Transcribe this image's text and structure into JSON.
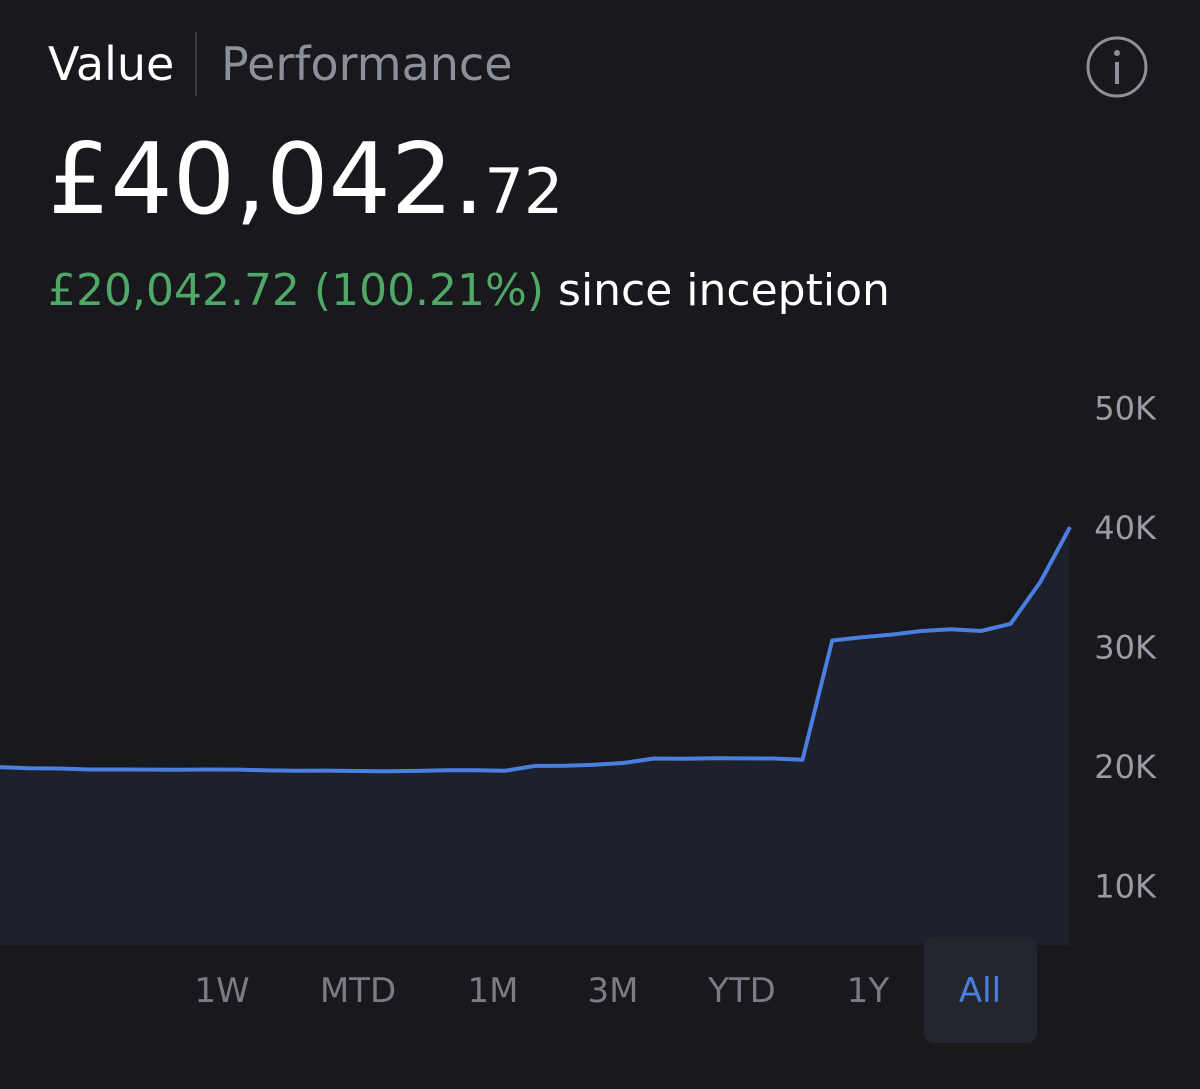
{
  "tabs": [
    "Value",
    "Performance"
  ],
  "value": {
    "whole": "£40,042.",
    "decimals": "72"
  },
  "change": {
    "amount": "£20,042.72 (100.21%)",
    "label": "since inception"
  },
  "ranges": {
    "options": [
      "1W",
      "MTD",
      "1M",
      "3M",
      "YTD",
      "1Y",
      "All"
    ],
    "selected_index": 6
  },
  "chart_data": {
    "type": "line",
    "categories": [
      null,
      null,
      null,
      null,
      null,
      null,
      null,
      null,
      null,
      null,
      null,
      null,
      null,
      null,
      null,
      null,
      null,
      null,
      null,
      null,
      null,
      null,
      null,
      null,
      null,
      null,
      null,
      null,
      null,
      null,
      null,
      null,
      null,
      null,
      null,
      null,
      null
    ],
    "series": [
      {
        "name": "Value",
        "color": "#4a7fe0",
        "values": [
          19900,
          19800,
          19780,
          19700,
          19700,
          19690,
          19680,
          19700,
          19690,
          19620,
          19600,
          19610,
          19570,
          19550,
          19580,
          19640,
          19640,
          19600,
          20000,
          20010,
          20100,
          20250,
          20620,
          20600,
          20640,
          20630,
          20620,
          20520,
          30500,
          30780,
          31000,
          31300,
          31450,
          31300,
          31900,
          35400,
          40000
        ]
      }
    ],
    "ylim": [
      5000,
      55000
    ],
    "yticks": [
      {
        "value": 10000,
        "label": "10K"
      },
      {
        "value": 20000,
        "label": "20K"
      },
      {
        "value": 30000,
        "label": "30K"
      },
      {
        "value": 40000,
        "label": "40K"
      },
      {
        "value": 50000,
        "label": "50K"
      }
    ],
    "grid": false
  }
}
